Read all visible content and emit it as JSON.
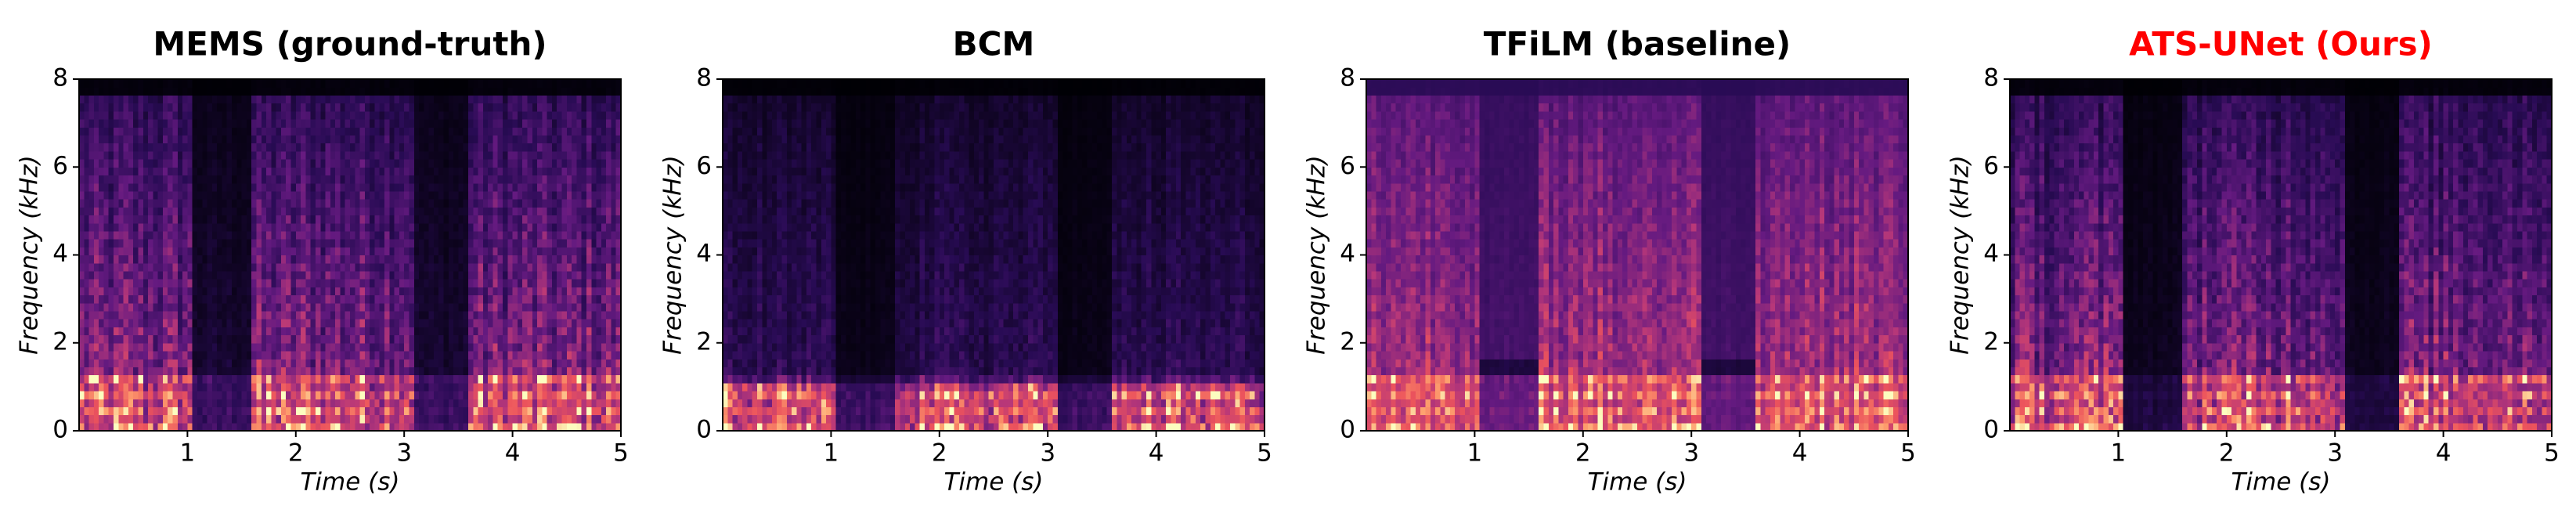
{
  "chart_data": [
    {
      "type": "spectrogram",
      "title": "MEMS (ground-truth)",
      "title_color": "#000000",
      "xlabel": "Time (s)",
      "ylabel": "Frequency (kHz)",
      "xlim": [
        0,
        5
      ],
      "xticks": [
        1,
        2,
        3,
        4,
        5
      ],
      "ylim": [
        0,
        8
      ],
      "yticks": [
        0,
        2,
        4,
        6,
        8
      ]
    },
    {
      "type": "spectrogram",
      "title": "BCM",
      "title_color": "#000000",
      "xlabel": "Time (s)",
      "ylabel": "Frequency (kHz)",
      "xlim": [
        0,
        5
      ],
      "xticks": [
        1,
        2,
        3,
        4,
        5
      ],
      "ylim": [
        0,
        8
      ],
      "yticks": [
        0,
        2,
        4,
        6,
        8
      ]
    },
    {
      "type": "spectrogram",
      "title": "TFiLM (baseline)",
      "title_color": "#000000",
      "xlabel": "Time (s)",
      "ylabel": "Frequency (kHz)",
      "xlim": [
        0,
        5
      ],
      "xticks": [
        1,
        2,
        3,
        4,
        5
      ],
      "ylim": [
        0,
        8
      ],
      "yticks": [
        0,
        2,
        4,
        6,
        8
      ]
    },
    {
      "type": "spectrogram",
      "title": "ATS-UNet (Ours)",
      "title_color": "#ff0000",
      "xlabel": "Time (s)",
      "ylabel": "Frequency (kHz)",
      "xlim": [
        0,
        5
      ],
      "xticks": [
        1,
        2,
        3,
        4,
        5
      ],
      "ylim": [
        0,
        8
      ],
      "yticks": [
        0,
        2,
        4,
        6,
        8
      ]
    }
  ]
}
